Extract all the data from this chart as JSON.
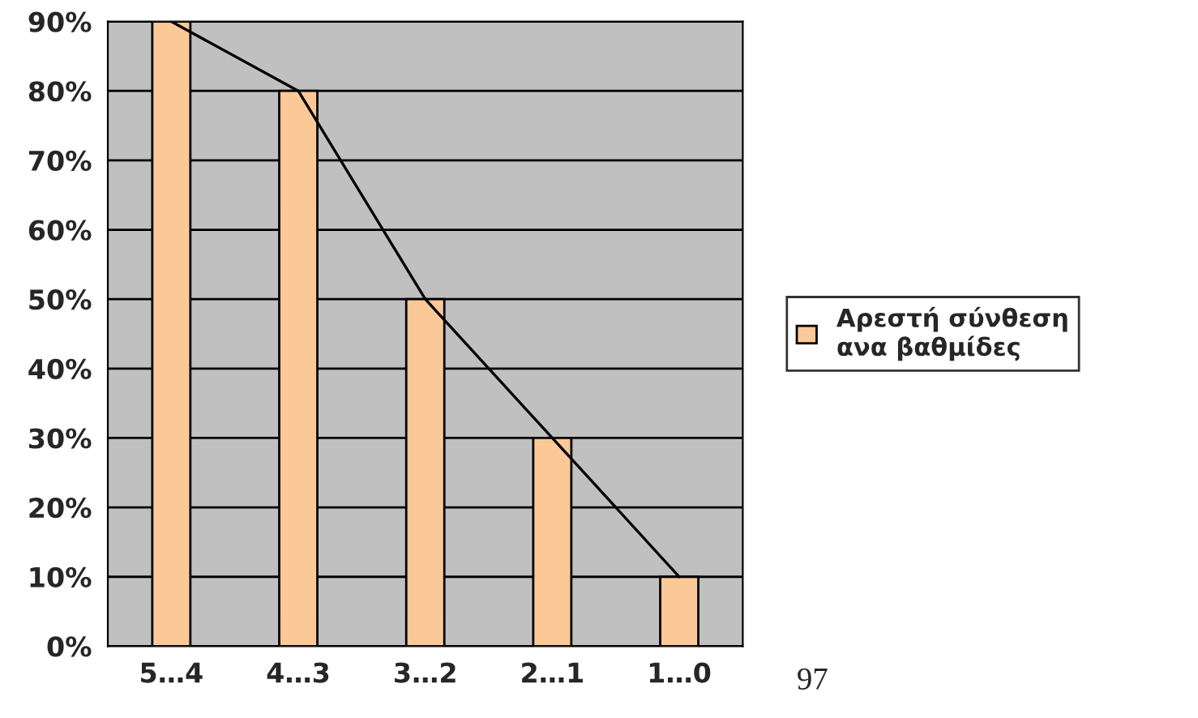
{
  "chart_data": {
    "type": "bar",
    "categories": [
      "5…4",
      "4…3",
      "3…2",
      "2…1",
      "1…0"
    ],
    "series": [
      {
        "name": "Αρεστή σύνθεση\nανα βαθμίδες",
        "color": "#fbc898",
        "values": [
          90,
          80,
          50,
          30,
          10
        ]
      },
      {
        "type": "line",
        "color": "#000000",
        "values": [
          90,
          80,
          50,
          30,
          10
        ]
      }
    ],
    "ylim": [
      0,
      90
    ],
    "yticks": [
      {
        "value": 0,
        "label": "0%"
      },
      {
        "value": 10,
        "label": "10%"
      },
      {
        "value": 20,
        "label": "20%"
      },
      {
        "value": 30,
        "label": "30%"
      },
      {
        "value": 40,
        "label": "40%"
      },
      {
        "value": 50,
        "label": "50%"
      },
      {
        "value": 60,
        "label": "60%"
      },
      {
        "value": 70,
        "label": "70%"
      },
      {
        "value": 80,
        "label": "80%"
      },
      {
        "value": 90,
        "label": "90%"
      }
    ],
    "grid": "y",
    "legend": "right",
    "annotations": [
      "97"
    ]
  }
}
